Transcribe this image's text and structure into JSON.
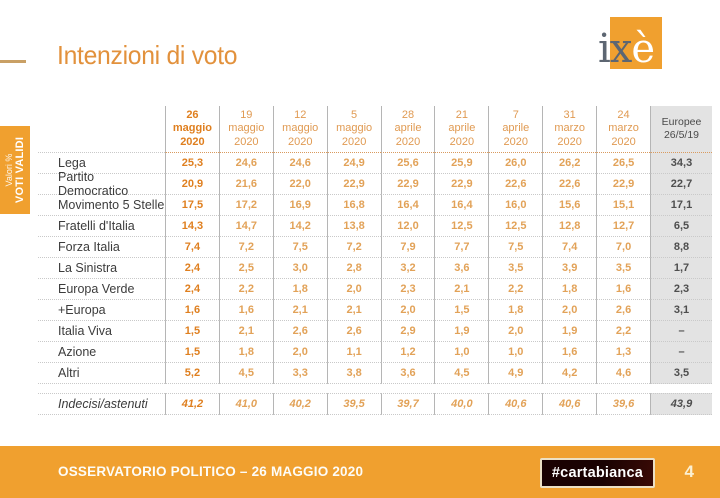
{
  "header": {
    "title": "Intenzioni di voto",
    "logo_ix": "ix",
    "logo_e": "è"
  },
  "side_tab": {
    "line1": "Valori %",
    "line2": "VOTI VALIDI"
  },
  "table": {
    "columns": [
      {
        "lines": [
          "26",
          "maggio",
          "2020"
        ],
        "emphasis": true
      },
      {
        "lines": [
          "19",
          "maggio",
          "2020"
        ]
      },
      {
        "lines": [
          "12",
          "maggio",
          "2020"
        ]
      },
      {
        "lines": [
          "5",
          "maggio",
          "2020"
        ]
      },
      {
        "lines": [
          "28",
          "aprile",
          "2020"
        ]
      },
      {
        "lines": [
          "21",
          "aprile",
          "2020"
        ]
      },
      {
        "lines": [
          "7",
          "aprile",
          "2020"
        ]
      },
      {
        "lines": [
          "31",
          "marzo",
          "2020"
        ]
      },
      {
        "lines": [
          "24",
          "marzo",
          "2020"
        ]
      },
      {
        "lines": [
          "Europee",
          "26/5/19"
        ],
        "gray": true
      }
    ],
    "rows": [
      {
        "name": "Lega",
        "values": [
          "25,3",
          "24,6",
          "24,6",
          "24,9",
          "25,6",
          "25,9",
          "26,0",
          "26,2",
          "26,5",
          "34,3"
        ]
      },
      {
        "name": "Partito Democratico",
        "values": [
          "20,9",
          "21,6",
          "22,0",
          "22,9",
          "22,9",
          "22,9",
          "22,6",
          "22,6",
          "22,9",
          "22,7"
        ]
      },
      {
        "name": "Movimento 5 Stelle",
        "values": [
          "17,5",
          "17,2",
          "16,9",
          "16,8",
          "16,4",
          "16,4",
          "16,0",
          "15,6",
          "15,1",
          "17,1"
        ]
      },
      {
        "name": "Fratelli d'Italia",
        "values": [
          "14,3",
          "14,7",
          "14,2",
          "13,8",
          "12,0",
          "12,5",
          "12,5",
          "12,8",
          "12,7",
          "6,5"
        ]
      },
      {
        "name": "Forza Italia",
        "values": [
          "7,4",
          "7,2",
          "7,5",
          "7,2",
          "7,9",
          "7,7",
          "7,5",
          "7,4",
          "7,0",
          "8,8"
        ]
      },
      {
        "name": "La Sinistra",
        "values": [
          "2,4",
          "2,5",
          "3,0",
          "2,8",
          "3,2",
          "3,6",
          "3,5",
          "3,9",
          "3,5",
          "1,7"
        ]
      },
      {
        "name": "Europa Verde",
        "values": [
          "2,4",
          "2,2",
          "1,8",
          "2,0",
          "2,3",
          "2,1",
          "2,2",
          "1,8",
          "1,6",
          "2,3"
        ]
      },
      {
        "name": "+Europa",
        "values": [
          "1,6",
          "1,6",
          "2,1",
          "2,1",
          "2,0",
          "1,5",
          "1,8",
          "2,0",
          "2,6",
          "3,1"
        ]
      },
      {
        "name": "Italia Viva",
        "values": [
          "1,5",
          "2,1",
          "2,6",
          "2,6",
          "2,9",
          "1,9",
          "2,0",
          "1,9",
          "2,2",
          "–"
        ]
      },
      {
        "name": "Azione",
        "values": [
          "1,5",
          "1,8",
          "2,0",
          "1,1",
          "1,2",
          "1,0",
          "1,0",
          "1,6",
          "1,3",
          "–"
        ]
      },
      {
        "name": "Altri",
        "values": [
          "5,2",
          "4,5",
          "3,3",
          "3,8",
          "3,6",
          "4,5",
          "4,9",
          "4,2",
          "4,6",
          "3,5"
        ]
      }
    ],
    "footer_row": {
      "name": "Indecisi/astenuti",
      "values": [
        "41,2",
        "41,0",
        "40,2",
        "39,5",
        "39,7",
        "40,0",
        "40,6",
        "40,6",
        "39,6",
        "43,9"
      ]
    }
  },
  "footer": {
    "caption": "OSSERVATORIO POLITICO – 26 MAGGIO 2020",
    "brand": "#cartabianca",
    "page": "4"
  },
  "colors": {
    "accent_orange": "#F0A02F",
    "header_orange": "#E09A52",
    "emphasis_orange": "#DF7F1F",
    "value_orange": "#E2A258",
    "gray_column_bg": "#E3E3E3",
    "dark_text": "#3C3C3C",
    "brand_box_bg": "#1A0202"
  },
  "chart_data": {
    "type": "table",
    "title": "Intenzioni di voto",
    "subtitle": "Valori % voti validi",
    "unit": "%",
    "categories": [
      "26 maggio 2020",
      "19 maggio 2020",
      "12 maggio 2020",
      "5 maggio 2020",
      "28 aprile 2020",
      "21 aprile 2020",
      "7 aprile 2020",
      "31 marzo 2020",
      "24 marzo 2020",
      "Europee 26/5/19"
    ],
    "series": [
      {
        "name": "Lega",
        "values": [
          25.3,
          24.6,
          24.6,
          24.9,
          25.6,
          25.9,
          26.0,
          26.2,
          26.5,
          34.3
        ]
      },
      {
        "name": "Partito Democratico",
        "values": [
          20.9,
          21.6,
          22.0,
          22.9,
          22.9,
          22.9,
          22.6,
          22.6,
          22.9,
          22.7
        ]
      },
      {
        "name": "Movimento 5 Stelle",
        "values": [
          17.5,
          17.2,
          16.9,
          16.8,
          16.4,
          16.4,
          16.0,
          15.6,
          15.1,
          17.1
        ]
      },
      {
        "name": "Fratelli d'Italia",
        "values": [
          14.3,
          14.7,
          14.2,
          13.8,
          12.0,
          12.5,
          12.5,
          12.8,
          12.7,
          6.5
        ]
      },
      {
        "name": "Forza Italia",
        "values": [
          7.4,
          7.2,
          7.5,
          7.2,
          7.9,
          7.7,
          7.5,
          7.4,
          7.0,
          8.8
        ]
      },
      {
        "name": "La Sinistra",
        "values": [
          2.4,
          2.5,
          3.0,
          2.8,
          3.2,
          3.6,
          3.5,
          3.9,
          3.5,
          1.7
        ]
      },
      {
        "name": "Europa Verde",
        "values": [
          2.4,
          2.2,
          1.8,
          2.0,
          2.3,
          2.1,
          2.2,
          1.8,
          1.6,
          2.3
        ]
      },
      {
        "name": "+Europa",
        "values": [
          1.6,
          1.6,
          2.1,
          2.1,
          2.0,
          1.5,
          1.8,
          2.0,
          2.6,
          3.1
        ]
      },
      {
        "name": "Italia Viva",
        "values": [
          1.5,
          2.1,
          2.6,
          2.6,
          2.9,
          1.9,
          2.0,
          1.9,
          2.2,
          null
        ]
      },
      {
        "name": "Azione",
        "values": [
          1.5,
          1.8,
          2.0,
          1.1,
          1.2,
          1.0,
          1.0,
          1.6,
          1.3,
          null
        ]
      },
      {
        "name": "Altri",
        "values": [
          5.2,
          4.5,
          3.3,
          3.8,
          3.6,
          4.5,
          4.9,
          4.2,
          4.6,
          3.5
        ]
      },
      {
        "name": "Indecisi/astenuti",
        "values": [
          41.2,
          41.0,
          40.2,
          39.5,
          39.7,
          40.0,
          40.6,
          40.6,
          39.6,
          43.9
        ]
      }
    ]
  }
}
